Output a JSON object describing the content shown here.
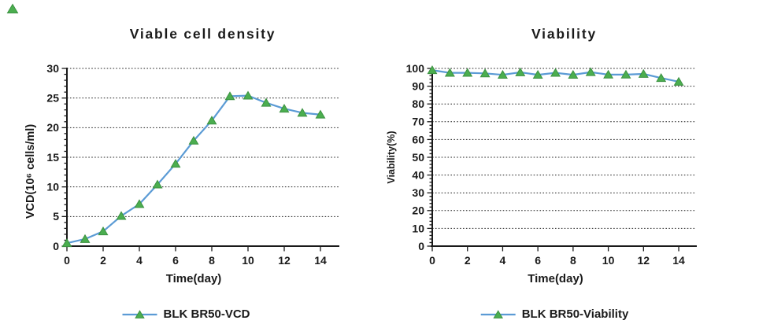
{
  "style": {
    "background": "#ffffff",
    "text_color": "#1a1a1a",
    "grid_color": "#212121",
    "line_color": "#5B9BD5",
    "marker_fill": "#4BAE4F",
    "marker_edge": "#3C9142"
  },
  "decorations": {
    "corner_marker": {
      "shape": "triangle",
      "color": "#4BAE4F",
      "edge_color": "#3C9142"
    }
  },
  "chart_data": [
    {
      "type": "line",
      "title": "Viable cell density",
      "xlabel": "Time(day)",
      "ylabel": "VCD(10⁶ cells/ml)",
      "x": [
        0,
        1,
        2,
        3,
        4,
        5,
        6,
        7,
        8,
        9,
        10,
        11,
        12,
        13,
        14
      ],
      "series": [
        {
          "name": "BLK BR50-VCD",
          "values": [
            0.5,
            1.2,
            2.5,
            5.1,
            7.1,
            10.4,
            13.9,
            17.8,
            21.2,
            25.3,
            25.4,
            24.2,
            23.2,
            22.5,
            22.2
          ],
          "line_color": "#5B9BD5",
          "marker": "triangle",
          "marker_fill": "#4BAE4F",
          "marker_edge": "#3C9142"
        }
      ],
      "xlim": [
        0,
        15
      ],
      "ylim": [
        0,
        30
      ],
      "x_tick_labels": [
        "0",
        "2",
        "4",
        "6",
        "8",
        "10",
        "12",
        "14"
      ],
      "y_tick_labels": [
        "0",
        "5",
        "10",
        "15",
        "20",
        "25",
        "30"
      ],
      "x_major_step": 2,
      "y_major_step": 5,
      "y_minor_step": 1,
      "grid": "horizontal dotted",
      "legend_position": "bottom"
    },
    {
      "type": "line",
      "title": "Viability",
      "xlabel": "Time(day)",
      "ylabel": "Viability(%)",
      "x": [
        0,
        1,
        2,
        3,
        4,
        5,
        6,
        7,
        8,
        9,
        10,
        11,
        12,
        13,
        14
      ],
      "series": [
        {
          "name": "BLK BR50-Viability",
          "values": [
            99,
            97.5,
            97.5,
            97.2,
            96.4,
            97.8,
            96.4,
            97.5,
            96.4,
            97.9,
            96.5,
            96.5,
            96.9,
            94.6,
            92.5
          ],
          "line_color": "#5B9BD5",
          "marker": "triangle",
          "marker_fill": "#4BAE4F",
          "marker_edge": "#3C9142"
        }
      ],
      "xlim": [
        0,
        15
      ],
      "ylim": [
        0,
        100
      ],
      "x_tick_labels": [
        "0",
        "2",
        "4",
        "6",
        "8",
        "10",
        "12",
        "14"
      ],
      "y_tick_labels": [
        "0",
        "10",
        "20",
        "30",
        "40",
        "50",
        "60",
        "70",
        "80",
        "90",
        "100"
      ],
      "x_major_step": 2,
      "y_major_step": 10,
      "y_minor_step": 2,
      "grid": "horizontal dotted",
      "legend_position": "bottom"
    }
  ]
}
